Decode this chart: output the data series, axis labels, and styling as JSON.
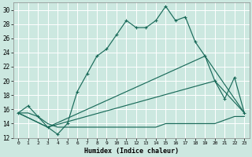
{
  "xlabel": "Humidex (Indice chaleur)",
  "bg_color": "#cce8e0",
  "grid_color": "#ffffff",
  "line_color": "#1a6b5a",
  "xlim": [
    -0.5,
    23.5
  ],
  "ylim": [
    12,
    31
  ],
  "xticks": [
    0,
    1,
    2,
    3,
    4,
    5,
    6,
    7,
    8,
    9,
    10,
    11,
    12,
    13,
    14,
    15,
    16,
    17,
    18,
    19,
    20,
    21,
    22,
    23
  ],
  "yticks": [
    12,
    14,
    16,
    18,
    20,
    22,
    24,
    26,
    28,
    30
  ],
  "line1_x": [
    0,
    1,
    2,
    3,
    4,
    5,
    6,
    7,
    8,
    9,
    10,
    11,
    12,
    13,
    14,
    15,
    16,
    17,
    18,
    19,
    20,
    21,
    22,
    23
  ],
  "line1_y": [
    15.5,
    16.5,
    15.0,
    13.5,
    12.5,
    14.0,
    18.5,
    21.0,
    23.5,
    24.5,
    26.5,
    28.5,
    27.5,
    27.5,
    28.5,
    30.5,
    28.5,
    29.0,
    25.5,
    23.5,
    20.0,
    17.5,
    20.5,
    15.5
  ],
  "line2_x": [
    0,
    1,
    2,
    3,
    4,
    5,
    6,
    7,
    8,
    9,
    10,
    11,
    12,
    13,
    14,
    15,
    16,
    17,
    18,
    19,
    20,
    21,
    22,
    23
  ],
  "line2_y": [
    15.5,
    15.5,
    15.0,
    14.0,
    13.5,
    13.5,
    13.5,
    13.5,
    13.5,
    13.5,
    13.5,
    13.5,
    13.5,
    13.5,
    13.5,
    14.0,
    14.0,
    14.0,
    14.0,
    14.0,
    14.0,
    14.5,
    15.0,
    15.0
  ],
  "line3_x": [
    0,
    23
  ],
  "line3_y": [
    15.5,
    15.5
  ],
  "line4_x": [
    0,
    3,
    19,
    23
  ],
  "line4_y": [
    15.5,
    13.5,
    23.5,
    15.5
  ],
  "line5_x": [
    0,
    3,
    20,
    23
  ],
  "line5_y": [
    15.5,
    13.5,
    20.0,
    15.5
  ]
}
